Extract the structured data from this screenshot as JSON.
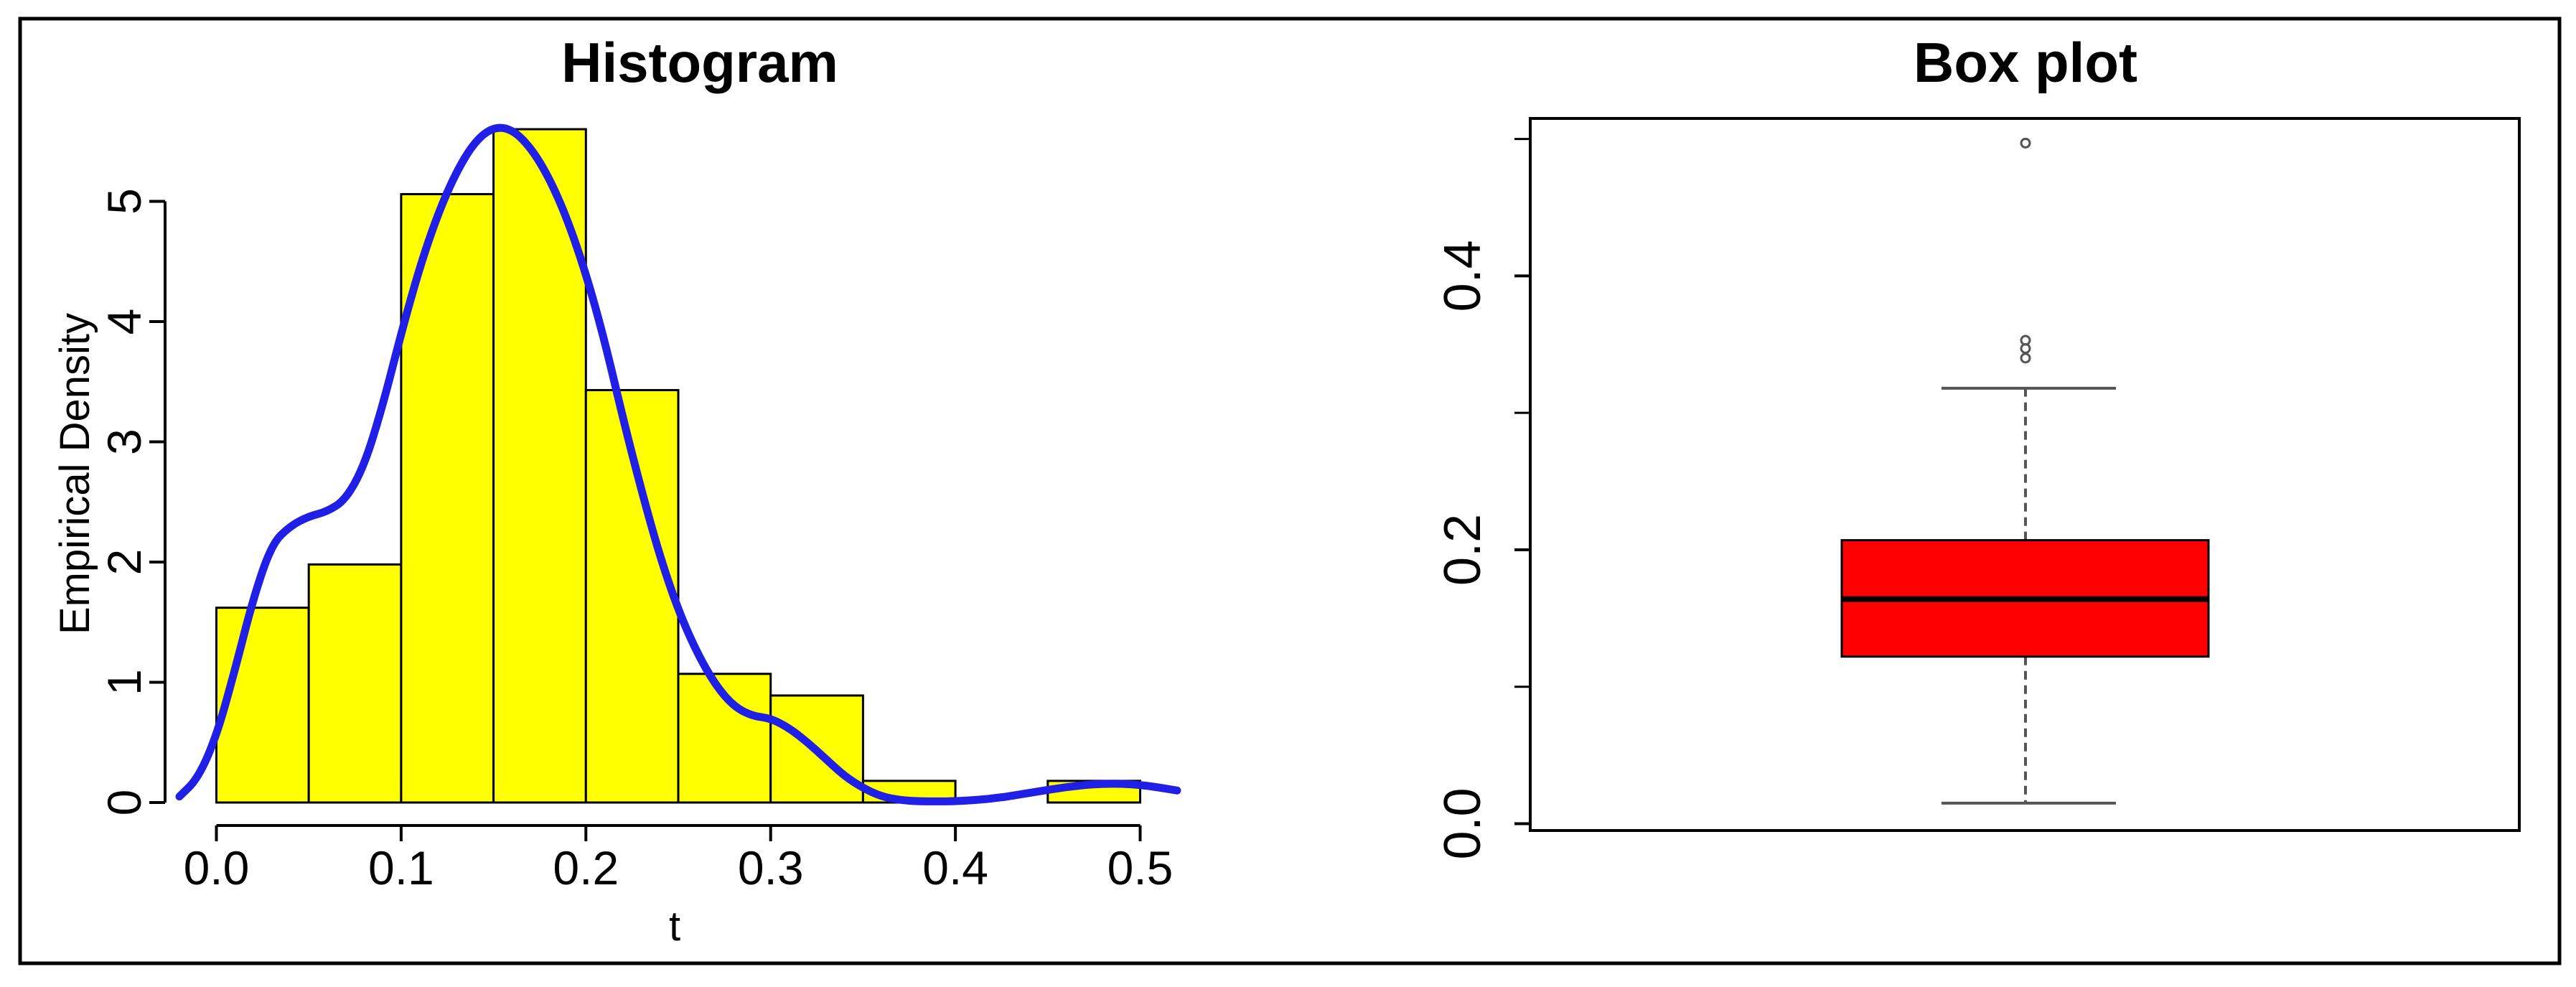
{
  "colors": {
    "hist_fill": "#ffff00",
    "density_line": "#1f1fe6",
    "box_fill": "#ff0000",
    "stroke": "#000000",
    "whisker": "#555555",
    "frame": "#000000"
  },
  "chart_data": [
    {
      "type": "histogram",
      "title": "Histogram",
      "xlabel": "t",
      "ylabel": "Empirical Density",
      "xlim": [
        -0.02,
        0.52
      ],
      "ylim": [
        0,
        5.6
      ],
      "x_ticks": [
        "0.0",
        "0.1",
        "0.2",
        "0.3",
        "0.4",
        "0.5"
      ],
      "y_ticks": [
        "0",
        "1",
        "2",
        "3",
        "4",
        "5"
      ],
      "bins": [
        {
          "x0": 0.0,
          "x1": 0.05,
          "density": 1.62
        },
        {
          "x0": 0.05,
          "x1": 0.1,
          "density": 1.98
        },
        {
          "x0": 0.1,
          "x1": 0.15,
          "density": 5.06
        },
        {
          "x0": 0.15,
          "x1": 0.2,
          "density": 5.6
        },
        {
          "x0": 0.2,
          "x1": 0.25,
          "density": 3.43
        },
        {
          "x0": 0.25,
          "x1": 0.3,
          "density": 1.07
        },
        {
          "x0": 0.3,
          "x1": 0.35,
          "density": 0.89
        },
        {
          "x0": 0.35,
          "x1": 0.4,
          "density": 0.18
        },
        {
          "x0": 0.4,
          "x1": 0.45,
          "density": 0.0
        },
        {
          "x0": 0.45,
          "x1": 0.5,
          "density": 0.18
        }
      ],
      "density_curve": {
        "x": [
          -0.02,
          -0.01,
          0.0,
          0.01,
          0.02,
          0.03,
          0.04,
          0.05,
          0.06,
          0.07,
          0.08,
          0.09,
          0.1,
          0.11,
          0.12,
          0.13,
          0.14,
          0.15,
          0.16,
          0.17,
          0.18,
          0.19,
          0.2,
          0.21,
          0.22,
          0.23,
          0.24,
          0.25,
          0.26,
          0.27,
          0.28,
          0.29,
          0.3,
          0.31,
          0.32,
          0.33,
          0.34,
          0.35,
          0.36,
          0.37,
          0.38,
          0.39,
          0.4,
          0.42,
          0.44,
          0.46,
          0.48,
          0.5,
          0.52
        ],
        "y": [
          0.05,
          0.2,
          0.55,
          1.1,
          1.7,
          2.15,
          2.3,
          2.38,
          2.42,
          2.52,
          2.8,
          3.3,
          3.9,
          4.45,
          4.9,
          5.25,
          5.5,
          5.62,
          5.6,
          5.45,
          5.2,
          4.85,
          4.4,
          3.85,
          3.2,
          2.6,
          2.05,
          1.6,
          1.25,
          0.98,
          0.8,
          0.72,
          0.7,
          0.62,
          0.5,
          0.36,
          0.22,
          0.12,
          0.05,
          0.02,
          0.01,
          0.01,
          0.01,
          0.03,
          0.08,
          0.13,
          0.16,
          0.15,
          0.1
        ]
      }
    },
    {
      "type": "box",
      "title": "Box plot",
      "ylim": [
        -0.005,
        0.515
      ],
      "y_ticks": [
        "0.0",
        "0.2",
        "0.4"
      ],
      "y_tick_values": [
        0.0,
        0.2,
        0.4
      ],
      "minor_y_ticks": [
        0.1,
        0.3,
        0.5
      ],
      "whisker_low": 0.015,
      "q1": 0.122,
      "median": 0.164,
      "q3": 0.207,
      "whisker_high": 0.318,
      "outliers": [
        0.34,
        0.347,
        0.353,
        0.497
      ]
    }
  ]
}
